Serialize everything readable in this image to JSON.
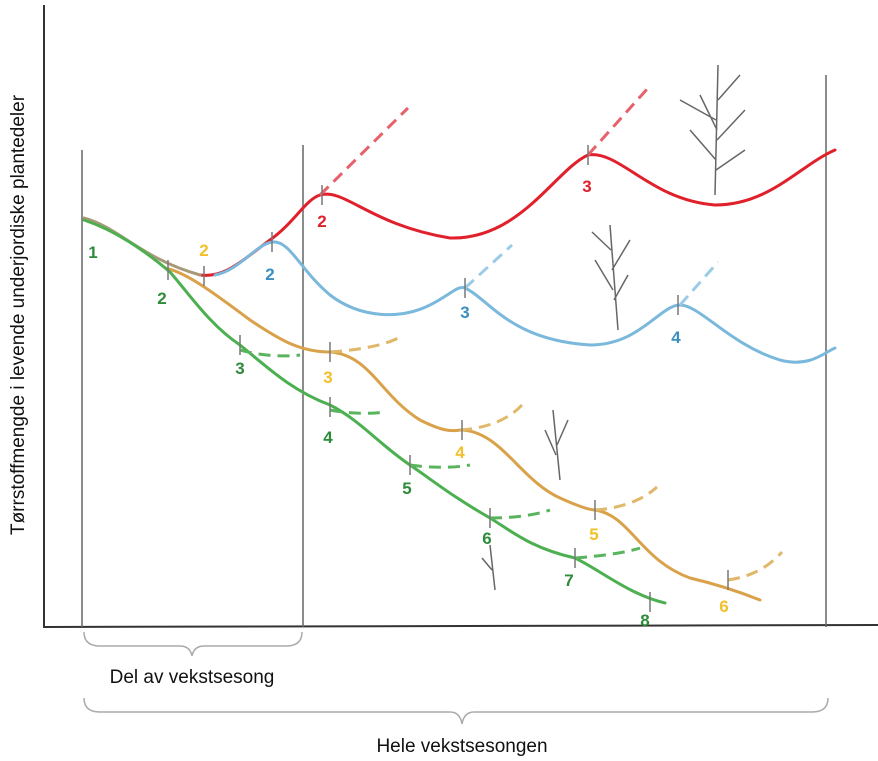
{
  "y_axis_label": "Tørrstoffmengde i levende underjordiske plantedeler",
  "brackets": [
    "Del av vekstsesong",
    "Hele vekstsesongen"
  ],
  "curves": {
    "red": [
      "2",
      "3"
    ],
    "blue": [
      "2",
      "3",
      "4"
    ],
    "yellow": [
      "2",
      "3",
      "4",
      "5",
      "6"
    ],
    "green": [
      "1",
      "2",
      "3",
      "4",
      "5",
      "6",
      "7",
      "8"
    ]
  }
}
